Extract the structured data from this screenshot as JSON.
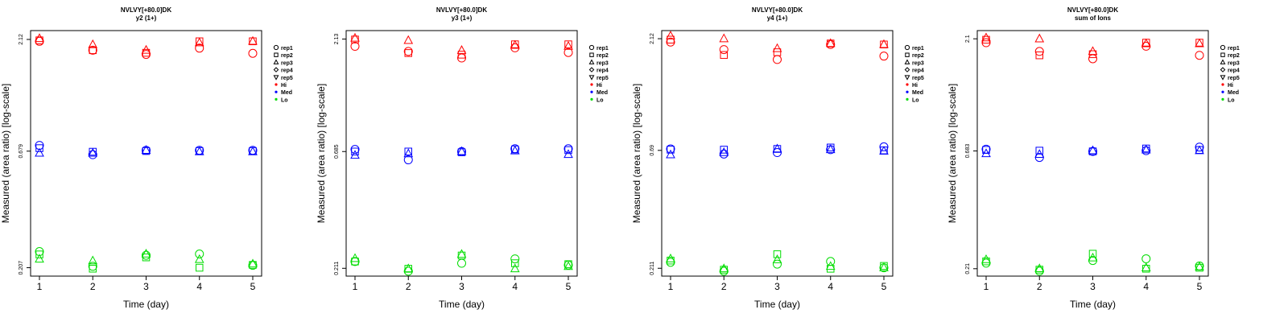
{
  "chart_data": [
    {
      "type": "scatter",
      "title": "NVLVY[+80.0]DK",
      "subtitle": "y2 (1+)",
      "xlabel": "Time (day)",
      "ylabel": "Measured (area ratio) [log-scale]",
      "x": [
        1,
        2,
        3,
        4,
        5
      ],
      "xticks": [
        "1",
        "2",
        "3",
        "4",
        "5"
      ],
      "yticks": [
        {
          "label": "0.207",
          "value": 0.207
        },
        {
          "label": "0.679",
          "value": 0.679
        },
        {
          "label": "2.12",
          "value": 2.12
        }
      ],
      "ylim": [
        0.19,
        2.32
      ],
      "series": [
        {
          "name": "rep1",
          "level": "Hi",
          "values": [
            2.08,
            1.9,
            1.82,
            1.94,
            1.84
          ]
        },
        {
          "name": "rep2",
          "level": "Hi",
          "values": [
            2.1,
            1.9,
            1.85,
            2.08,
            2.08
          ]
        },
        {
          "name": "rep3",
          "level": "Hi",
          "values": [
            2.14,
            2.01,
            1.9,
            2.05,
            2.08
          ]
        },
        {
          "name": "rep1",
          "level": "Med",
          "values": [
            0.72,
            0.655,
            0.685,
            0.685,
            0.685
          ]
        },
        {
          "name": "rep2",
          "level": "Med",
          "values": [
            0.7,
            0.675,
            0.68,
            0.68,
            0.68
          ]
        },
        {
          "name": "rep3",
          "level": "Med",
          "values": [
            0.665,
            0.665,
            0.685,
            0.675,
            0.675
          ]
        },
        {
          "name": "rep1",
          "level": "Lo",
          "values": [
            0.244,
            0.21,
            0.235,
            0.238,
            0.212
          ]
        },
        {
          "name": "rep2",
          "level": "Lo",
          "values": [
            0.237,
            0.205,
            0.23,
            0.207,
            0.213
          ]
        },
        {
          "name": "rep3",
          "level": "Lo",
          "values": [
            0.226,
            0.222,
            0.238,
            0.225,
            0.215
          ]
        }
      ]
    },
    {
      "type": "scatter",
      "title": "NVLVY[+80.0]DK",
      "subtitle": "y3 (1+)",
      "xlabel": "Time (day)",
      "ylabel": "Measured (area ratio) [log-scale]",
      "x": [
        1,
        2,
        3,
        4,
        5
      ],
      "xticks": [
        "1",
        "2",
        "3",
        "4",
        "5"
      ],
      "yticks": [
        {
          "label": "0.211",
          "value": 0.211
        },
        {
          "label": "0.685",
          "value": 0.685
        },
        {
          "label": "2.13",
          "value": 2.13
        }
      ],
      "ylim": [
        0.195,
        2.32
      ],
      "series": [
        {
          "name": "rep1",
          "level": "Hi",
          "values": [
            1.98,
            1.88,
            1.76,
            1.95,
            1.86
          ]
        },
        {
          "name": "rep2",
          "level": "Hi",
          "values": [
            2.12,
            1.85,
            1.82,
            2.02,
            2.02
          ]
        },
        {
          "name": "rep3",
          "level": "Hi",
          "values": [
            2.15,
            2.1,
            1.9,
            2.0,
            1.98
          ]
        },
        {
          "name": "rep1",
          "level": "Med",
          "values": [
            0.7,
            0.63,
            0.685,
            0.705,
            0.705
          ]
        },
        {
          "name": "rep2",
          "level": "Med",
          "values": [
            0.685,
            0.685,
            0.68,
            0.7,
            0.695
          ]
        },
        {
          "name": "rep3",
          "level": "Med",
          "values": [
            0.66,
            0.67,
            0.685,
            0.69,
            0.665
          ]
        },
        {
          "name": "rep1",
          "level": "Lo",
          "values": [
            0.226,
            0.205,
            0.222,
            0.232,
            0.218
          ]
        },
        {
          "name": "rep2",
          "level": "Lo",
          "values": [
            0.226,
            0.21,
            0.24,
            0.222,
            0.22
          ]
        },
        {
          "name": "rep3",
          "level": "Lo",
          "values": [
            0.233,
            0.21,
            0.243,
            0.21,
            0.215
          ]
        }
      ]
    },
    {
      "type": "scatter",
      "title": "NVLVY[+80.0]DK",
      "subtitle": "y4 (1+)",
      "xlabel": "Time (day)",
      "ylabel": "Measured (area ratio) [log-scale]",
      "x": [
        1,
        2,
        3,
        4,
        5
      ],
      "xticks": [
        "1",
        "2",
        "3",
        "4",
        "5"
      ],
      "yticks": [
        {
          "label": "0.211",
          "value": 0.211
        },
        {
          "label": "0.69",
          "value": 0.69
        },
        {
          "label": "2.12",
          "value": 2.12
        }
      ],
      "ylim": [
        0.195,
        2.3
      ],
      "series": [
        {
          "name": "rep1",
          "level": "Hi",
          "values": [
            2.05,
            1.9,
            1.72,
            2.0,
            1.78
          ]
        },
        {
          "name": "rep2",
          "level": "Hi",
          "values": [
            2.1,
            1.8,
            1.85,
            2.02,
            2.0
          ]
        },
        {
          "name": "rep3",
          "level": "Hi",
          "values": [
            2.18,
            2.12,
            1.92,
            2.02,
            2.0
          ]
        },
        {
          "name": "rep1",
          "level": "Med",
          "values": [
            0.7,
            0.665,
            0.675,
            0.695,
            0.715
          ]
        },
        {
          "name": "rep2",
          "level": "Med",
          "values": [
            0.695,
            0.695,
            0.7,
            0.71,
            0.69
          ]
        },
        {
          "name": "rep3",
          "level": "Med",
          "values": [
            0.66,
            0.675,
            0.7,
            0.695,
            0.685
          ]
        },
        {
          "name": "rep1",
          "level": "Lo",
          "values": [
            0.224,
            0.205,
            0.22,
            0.226,
            0.212
          ]
        },
        {
          "name": "rep2",
          "level": "Lo",
          "values": [
            0.228,
            0.208,
            0.243,
            0.21,
            0.216
          ]
        },
        {
          "name": "rep3",
          "level": "Lo",
          "values": [
            0.232,
            0.21,
            0.23,
            0.215,
            0.212
          ]
        }
      ]
    },
    {
      "type": "scatter",
      "title": "NVLVY[+80.0]DK",
      "subtitle": "sum of Ions",
      "xlabel": "Time (day)",
      "ylabel": "Measured (area ratio) [log-scale]",
      "x": [
        1,
        2,
        3,
        4,
        5
      ],
      "xticks": [
        "1",
        "2",
        "3",
        "4",
        "5"
      ],
      "yticks": [
        {
          "label": "0.21",
          "value": 0.21
        },
        {
          "label": "0.683",
          "value": 0.683
        },
        {
          "label": "2.1",
          "value": 2.1
        }
      ],
      "ylim": [
        0.195,
        2.28
      ],
      "series": [
        {
          "name": "rep1",
          "level": "Hi",
          "values": [
            2.02,
            1.85,
            1.72,
            1.95,
            1.78
          ]
        },
        {
          "name": "rep2",
          "level": "Hi",
          "values": [
            2.08,
            1.78,
            1.8,
            2.02,
            2.02
          ]
        },
        {
          "name": "rep3",
          "level": "Hi",
          "values": [
            2.12,
            2.1,
            1.85,
            2.0,
            2.0
          ]
        },
        {
          "name": "rep1",
          "level": "Med",
          "values": [
            0.695,
            0.64,
            0.68,
            0.685,
            0.71
          ]
        },
        {
          "name": "rep2",
          "level": "Med",
          "values": [
            0.69,
            0.685,
            0.68,
            0.7,
            0.69
          ]
        },
        {
          "name": "rep3",
          "level": "Med",
          "values": [
            0.665,
            0.66,
            0.685,
            0.69,
            0.685
          ]
        },
        {
          "name": "rep1",
          "level": "Lo",
          "values": [
            0.222,
            0.205,
            0.228,
            0.232,
            0.216
          ]
        },
        {
          "name": "rep2",
          "level": "Lo",
          "values": [
            0.226,
            0.208,
            0.244,
            0.21,
            0.212
          ]
        },
        {
          "name": "rep3",
          "level": "Lo",
          "values": [
            0.23,
            0.21,
            0.234,
            0.212,
            0.214
          ]
        }
      ]
    }
  ],
  "legend": {
    "reps": [
      {
        "label": "rep1",
        "symbol": "circle"
      },
      {
        "label": "rep2",
        "symbol": "square"
      },
      {
        "label": "rep3",
        "symbol": "triangle-up"
      },
      {
        "label": "rep4",
        "symbol": "diamond"
      },
      {
        "label": "rep5",
        "symbol": "triangle-down"
      }
    ],
    "levels": [
      {
        "label": "Hi",
        "color": "#ff0000"
      },
      {
        "label": "Med",
        "color": "#0000ff"
      },
      {
        "label": "Lo",
        "color": "#00dd00"
      }
    ]
  }
}
